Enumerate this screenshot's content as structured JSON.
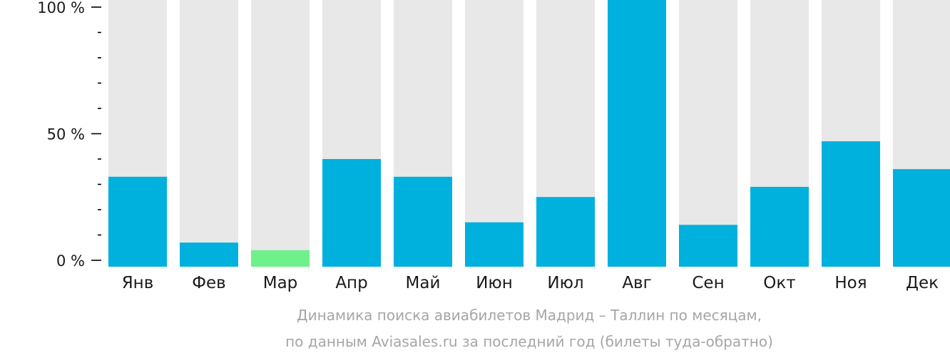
{
  "chart_data": {
    "type": "bar",
    "categories": [
      "Янв",
      "Фев",
      "Мар",
      "Апр",
      "Май",
      "Июн",
      "Июл",
      "Авг",
      "Сен",
      "Окт",
      "Ноя",
      "Дек"
    ],
    "values": [
      33,
      7,
      4,
      40,
      33,
      15,
      25,
      100,
      14,
      29,
      47,
      36
    ],
    "max_values": [
      100,
      100,
      100,
      100,
      100,
      100,
      100,
      100,
      100,
      100,
      100,
      100
    ],
    "highlight_index": 2,
    "ylim": [
      0,
      100
    ],
    "yticks": [
      {
        "value": 0,
        "label": "0 %"
      },
      {
        "value": 50,
        "label": "50 %"
      },
      {
        "value": 100,
        "label": "100 %"
      }
    ],
    "minor_tick_step": 10,
    "grid": false,
    "xlabel": "",
    "ylabel": "",
    "colors": {
      "bar": "#00b0dd",
      "highlight": "#6ef08a",
      "background_bar": "#e8e8e8",
      "axis": "#000000",
      "caption": "#a6a6a6"
    }
  },
  "caption": {
    "line1": "Динамика поиска авиабилетов Мадрид – Таллин по месяцам,",
    "line2": "по данным Aviasales.ru за последний год (билеты туда-обратно)"
  }
}
